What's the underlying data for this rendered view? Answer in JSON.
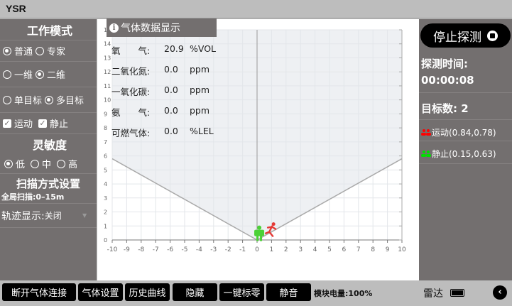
{
  "app": {
    "title": "YSR"
  },
  "left": {
    "work_mode_title": "工作模式",
    "mode_options": [
      {
        "label": "普通",
        "selected": true
      },
      {
        "label": "专家",
        "selected": false
      }
    ],
    "dim_options": [
      {
        "label": "一维",
        "selected": false
      },
      {
        "label": "二维",
        "selected": true
      }
    ],
    "target_options": [
      {
        "label": "单目标",
        "selected": false
      },
      {
        "label": "多目标",
        "selected": true
      }
    ],
    "filters": [
      {
        "label": "运动",
        "checked": true
      },
      {
        "label": "静止",
        "checked": true
      }
    ],
    "sensitivity_title": "灵敏度",
    "sensitivity_options": [
      {
        "label": "低",
        "selected": true
      },
      {
        "label": "中",
        "selected": false
      },
      {
        "label": "高",
        "selected": false
      }
    ],
    "scan_title": "扫描方式设置",
    "scan_value": "全局扫描:0–15m",
    "track_label": "轨迹显示:",
    "track_value": "关闭"
  },
  "gas": {
    "title": "气体数据显示",
    "rows": [
      {
        "name": "氧　　气:",
        "value": "20.9",
        "unit": "%VOL"
      },
      {
        "name": "二氧化氮:",
        "value": "0.0",
        "unit": "ppm"
      },
      {
        "name": "一氧化碳:",
        "value": "0.0",
        "unit": "ppm"
      },
      {
        "name": "氨　　气:",
        "value": "0.0",
        "unit": "ppm"
      },
      {
        "name": "可燃气体:",
        "value": "0.0",
        "unit": "%LEL"
      }
    ]
  },
  "chart_data": {
    "type": "scatter",
    "xlim": [
      -10,
      10
    ],
    "ylim": [
      0,
      15
    ],
    "x_ticks": [
      "-10",
      "-9",
      "-8",
      "-7",
      "-6",
      "-5",
      "-4",
      "-3",
      "-2",
      "-1",
      "0",
      "1",
      "2",
      "3",
      "4",
      "5",
      "6",
      "7",
      "8",
      "9",
      "10"
    ],
    "y_ticks": [
      "0",
      "1",
      "2",
      "3",
      "4",
      "5",
      "6",
      "7",
      "8",
      "9",
      "10",
      "11",
      "12",
      "13",
      "14",
      "15"
    ],
    "grid": true,
    "detection_cone": {
      "left": [
        -10,
        5.8
      ],
      "apex": [
        0,
        0
      ],
      "right": [
        10,
        5.8
      ]
    },
    "targets": [
      {
        "type": "moving",
        "x": 0.84,
        "y": 0.78,
        "color": "#e53935"
      },
      {
        "type": "static",
        "x": 0.15,
        "y": 0.63,
        "color": "#4cd137"
      }
    ]
  },
  "right": {
    "stop_label": "停止探测",
    "time_label": "探测时间:",
    "time_value": "00:00:08",
    "count_label": "目标数: 2",
    "targets": [
      {
        "text": "运动(0.84,0.78)",
        "color": "#ff0000"
      },
      {
        "text": "静止(0.15,0.63)",
        "color": "#00e000"
      }
    ]
  },
  "bottom": {
    "buttons": [
      "断开气体连接",
      "气体设置",
      "历史曲线",
      "隐藏",
      "一键标零",
      "静音"
    ],
    "battery_text": "模块电量:100%",
    "radar_label": "雷达"
  }
}
